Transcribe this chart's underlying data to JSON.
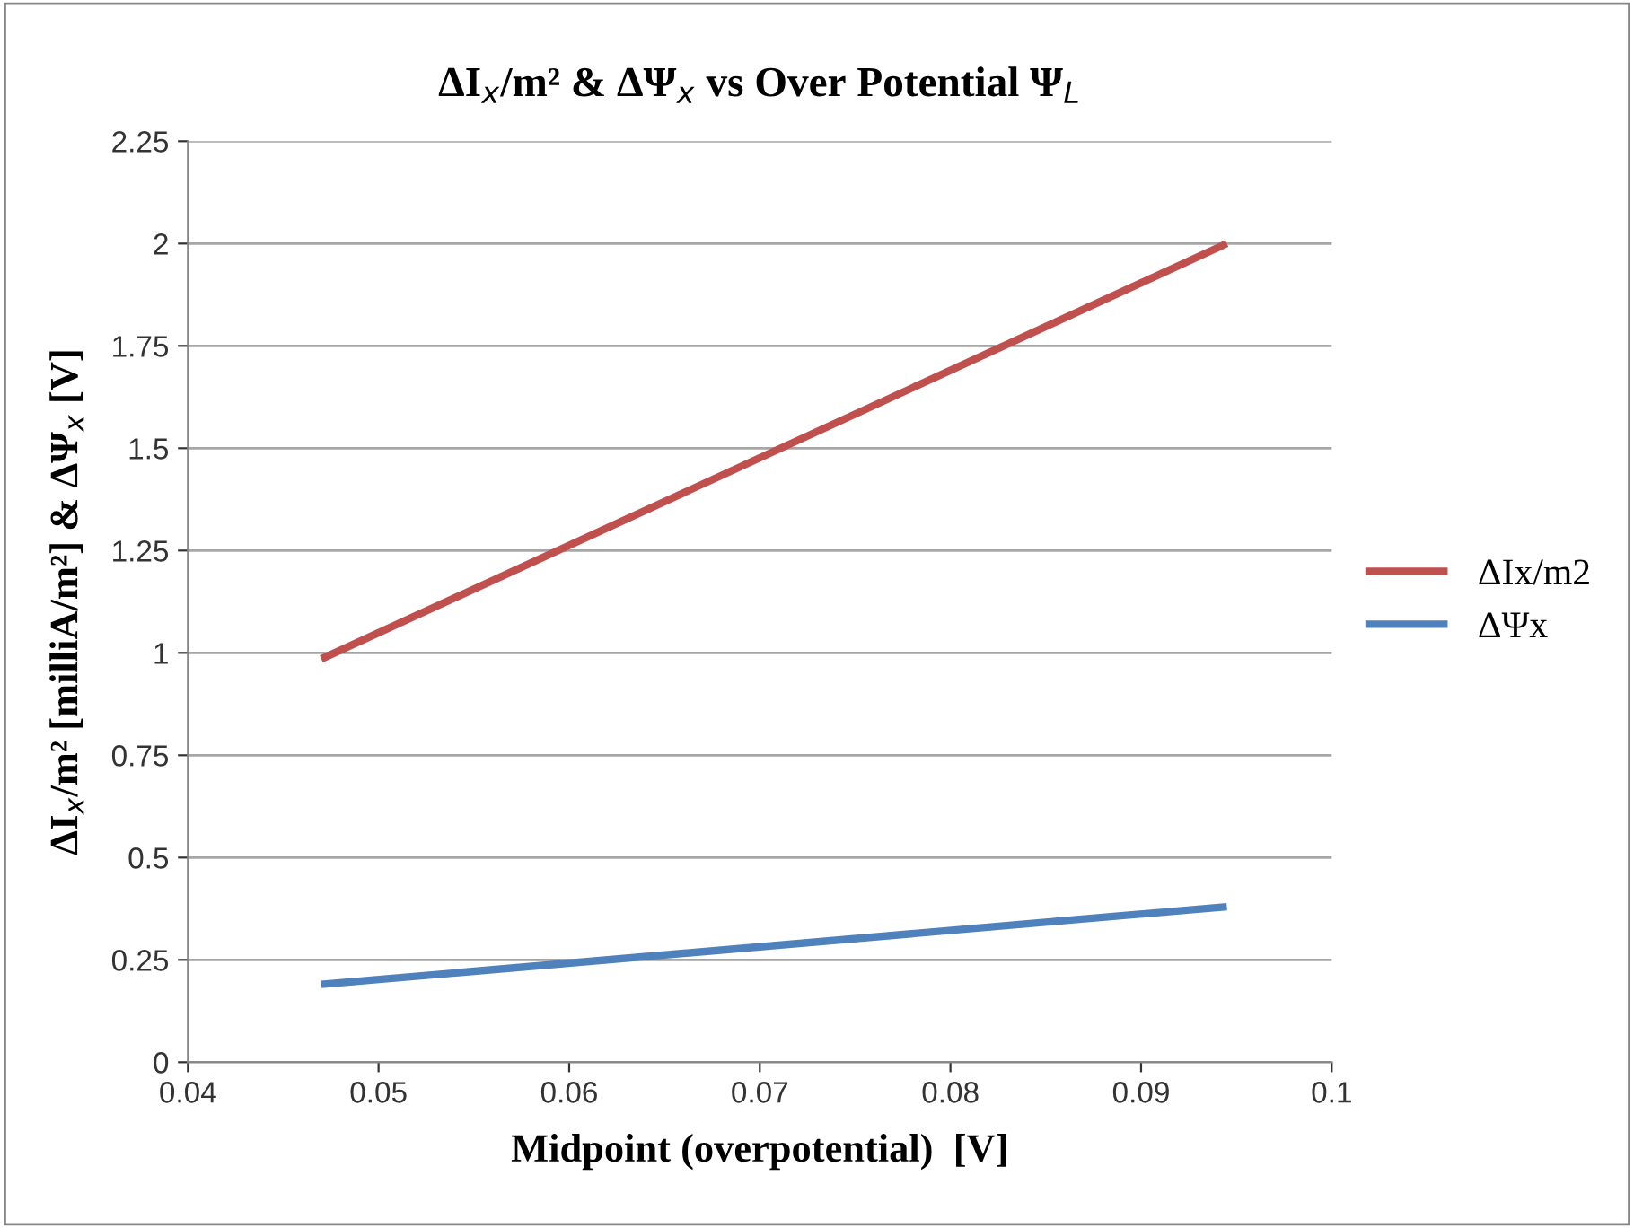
{
  "chart_data": {
    "type": "line",
    "title": "ΔI$_{x}$/m² & ΔΨ$_{x}$ vs Over Potential Ψ$_{L}$",
    "xlabel": "Midpoint (overpotential)  [V]",
    "ylabel": "ΔI$_{x}$/m² [milliA/m²] & ΔΨ$_{x}$ [V]",
    "series": [
      {
        "name": "ΔIx/m2",
        "color": "#c0504d",
        "values": [
          0.985,
          2.0
        ]
      },
      {
        "name": "ΔΨx",
        "color": "#4f81bd",
        "values": [
          0.19,
          0.38
        ]
      }
    ],
    "x": [
      0.047,
      0.0945
    ],
    "xlim": [
      0.04,
      0.1
    ],
    "xticks": [
      0.04,
      0.05,
      0.06,
      0.07,
      0.08,
      0.09,
      0.1
    ],
    "ylim": [
      0,
      2.25
    ],
    "yticks": [
      0,
      0.25,
      0.5,
      0.75,
      1,
      1.25,
      1.5,
      1.75,
      2,
      2.25
    ],
    "grid": "y",
    "legend": "right",
    "marker": "none",
    "line_style": "solid"
  }
}
